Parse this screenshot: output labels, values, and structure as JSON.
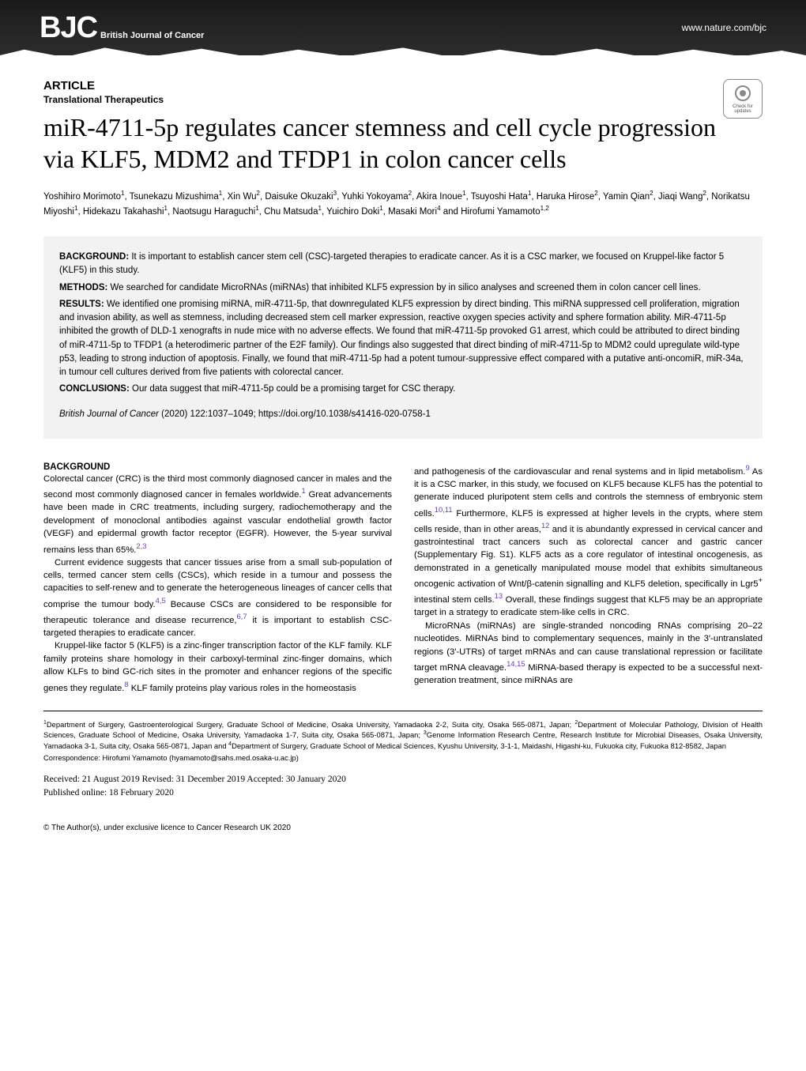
{
  "header": {
    "logo": "BJC",
    "logo_subtitle": "British Journal of Cancer",
    "nature_url": "www.nature.com/bjc"
  },
  "badge": {
    "text": "Check for updates"
  },
  "article": {
    "type": "ARTICLE",
    "subtype": "Translational Therapeutics",
    "title": "miR-4711-5p regulates cancer stemness and cell cycle progression via KLF5, MDM2 and TFDP1 in colon cancer cells",
    "authors_html": "Yoshihiro Morimoto<sup>1</sup>, Tsunekazu Mizushima<sup>1</sup>, Xin Wu<sup>2</sup>, Daisuke Okuzaki<sup>3</sup>, Yuhki Yokoyama<sup>2</sup>, Akira Inoue<sup>1</sup>, Tsuyoshi Hata<sup>1</sup>, Haruka Hirose<sup>2</sup>, Yamin Qian<sup>2</sup>, Jiaqi Wang<sup>2</sup>, Norikatsu Miyoshi<sup>1</sup>, Hidekazu Takahashi<sup>1</sup>, Naotsugu Haraguchi<sup>1</sup>, Chu Matsuda<sup>1</sup>, Yuichiro Doki<sup>1</sup>, Masaki Mori<sup>4</sup> and Hirofumi Yamamoto<sup>1,2</sup>"
  },
  "abstract": {
    "background_label": "BACKGROUND:",
    "background": " It is important to establish cancer stem cell (CSC)-targeted therapies to eradicate cancer. As it is a CSC marker, we focused on Kruppel-like factor 5 (KLF5) in this study.",
    "methods_label": "METHODS:",
    "methods": " We searched for candidate MicroRNAs (miRNAs) that inhibited KLF5 expression by in silico analyses and screened them in colon cancer cell lines.",
    "results_label": "RESULTS:",
    "results": " We identified one promising miRNA, miR-4711-5p, that downregulated KLF5 expression by direct binding. This miRNA suppressed cell proliferation, migration and invasion ability, as well as stemness, including decreased stem cell marker expression, reactive oxygen species activity and sphere formation ability. MiR-4711-5p inhibited the growth of DLD-1 xenografts in nude mice with no adverse effects. We found that miR-4711-5p provoked G1 arrest, which could be attributed to direct binding of miR-4711-5p to TFDP1 (a heterodimeric partner of the E2F family). Our findings also suggested that direct binding of miR-4711-5p to MDM2 could upregulate wild-type p53, leading to strong induction of apoptosis. Finally, we found that miR-4711-5p had a potent tumour-suppressive effect compared with a putative anti-oncomiR, miR-34a, in tumour cell cultures derived from five patients with colorectal cancer.",
    "conclusions_label": "CONCLUSIONS:",
    "conclusions": " Our data suggest that miR-4711-5p could be a promising target for CSC therapy.",
    "citation_journal": "British Journal of Cancer",
    "citation_rest": " (2020) 122:1037–1049; https://doi.org/10.1038/s41416-020-0758-1"
  },
  "body": {
    "col1": {
      "heading": "BACKGROUND",
      "p1a": "Colorectal cancer (CRC) is the third most commonly diagnosed cancer in males and the second most commonly diagnosed cancer in females worldwide.",
      "p1_ref1": "1",
      "p1b": " Great advancements have been made in CRC treatments, including surgery, radiochemotherapy and the development of monoclonal antibodies against vascular endothelial growth factor (VEGF) and epidermal growth factor receptor (EGFR). However, the 5-year survival remains less than 65%.",
      "p1_ref2": "2,3",
      "p2a": "Current evidence suggests that cancer tissues arise from a small sub-population of cells, termed cancer stem cells (CSCs), which reside in a tumour and possess the capacities to self-renew and to generate the heterogeneous lineages of cancer cells that comprise the tumour body.",
      "p2_ref1": "4,5",
      "p2b": " Because CSCs are considered to be responsible for therapeutic tolerance and disease recurrence,",
      "p2_ref2": "6,7",
      "p2c": " it is important to establish CSC-targeted therapies to eradicate cancer.",
      "p3a": "Kruppel-like factor 5 (KLF5) is a zinc-finger transcription factor of the KLF family. KLF family proteins share homology in their carboxyl-terminal zinc-finger domains, which allow KLFs to bind GC-rich sites in the promoter and enhancer regions of the specific genes they regulate.",
      "p3_ref1": "8",
      "p3b": " KLF family proteins play various roles in the homeostasis"
    },
    "col2": {
      "p1a": "and pathogenesis of the cardiovascular and renal systems and in lipid metabolism.",
      "p1_ref1": "9",
      "p1b": " As it is a CSC marker, in this study, we focused on KLF5 because KLF5 has the potential to generate induced pluripotent stem cells and controls the stemness of embryonic stem cells.",
      "p1_ref2": "10,11",
      "p1c": " Furthermore, KLF5 is expressed at higher levels in the crypts, where stem cells reside, than in other areas,",
      "p1_ref3": "12",
      "p1d": " and it is abundantly expressed in cervical cancer and gastrointestinal tract cancers such as colorectal cancer and gastric cancer (Supplementary Fig. S1). KLF5 acts as a core regulator of intestinal oncogenesis, as demonstrated in a genetically manipulated mouse model that exhibits simultaneous oncogenic activation of Wnt/β-catenin signalling and KLF5 deletion, specifically in Lgr5",
      "p1_sup": "+",
      "p1e": " intestinal stem cells.",
      "p1_ref4": "13",
      "p1f": " Overall, these findings suggest that KLF5 may be an appropriate target in a strategy to eradicate stem-like cells in CRC.",
      "p2a": "MicroRNAs (miRNAs) are single-stranded noncoding RNAs comprising 20–22 nucleotides. MiRNAs bind to complementary sequences, mainly in the 3′-untranslated regions (3′-UTRs) of target mRNAs and can cause translational repression or facilitate target mRNA cleavage.",
      "p2_ref1": "14,15",
      "p2b": " MiRNA-based therapy is expected to be a successful next-generation treatment, since miRNAs are"
    }
  },
  "affiliations_html": "<sup>1</sup>Department of Surgery, Gastroenterological Surgery, Graduate School of Medicine, Osaka University, Yamadaoka 2-2, Suita city, Osaka 565-0871, Japan; <sup>2</sup>Department of Molecular Pathology, Division of Health Sciences, Graduate School of Medicine, Osaka University, Yamadaoka 1-7, Suita city, Osaka 565-0871, Japan; <sup>3</sup>Genome Information Research Centre, Research Institute for Microbial Diseases, Osaka University, Yamadaoka 3-1, Suita city, Osaka 565-0871, Japan and <sup>4</sup>Department of Surgery, Graduate School of Medical Sciences, Kyushu University, 3-1-1, Maidashi, Higashi-ku, Fukuoka city, Fukuoka 812-8582, Japan",
  "correspondence": "Correspondence: Hirofumi Yamamoto (hyamamoto@sahs.med.osaka-u.ac.jp)",
  "dates": {
    "line1": "Received: 21 August 2019 Revised: 31 December 2019 Accepted: 30 January 2020",
    "line2": "Published online: 18 February 2020"
  },
  "copyright": "© The Author(s), under exclusive licence to Cancer Research UK 2020"
}
